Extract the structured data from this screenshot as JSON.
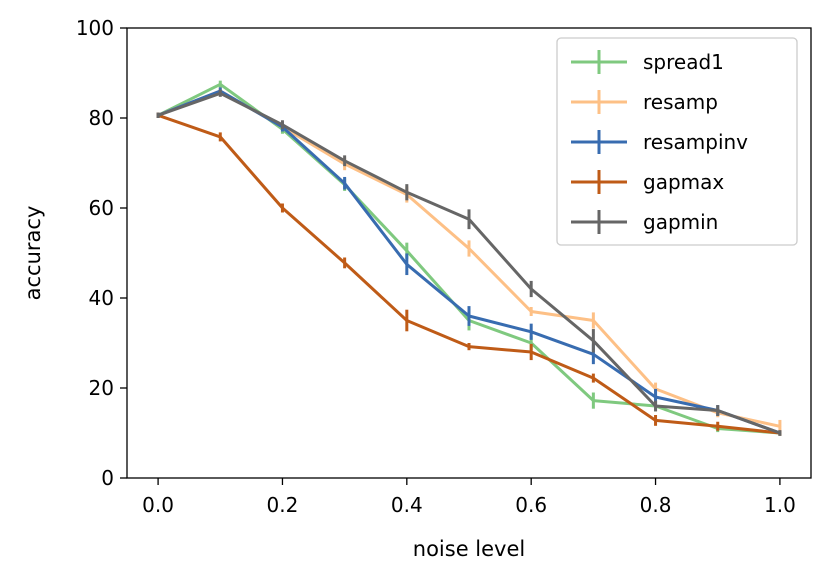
{
  "chart_data": {
    "type": "line",
    "title": "",
    "xlabel": "noise level",
    "ylabel": "accuracy",
    "xlim": [
      -0.05,
      1.05
    ],
    "ylim": [
      0,
      100
    ],
    "x": [
      0.0,
      0.1,
      0.2,
      0.3,
      0.4,
      0.5,
      0.6,
      0.7,
      0.8,
      0.9,
      1.0
    ],
    "xticks": [
      0.0,
      0.2,
      0.4,
      0.6,
      0.8,
      1.0
    ],
    "xtick_labels": [
      "0.0",
      "0.2",
      "0.4",
      "0.6",
      "0.8",
      "1.0"
    ],
    "yticks": [
      0,
      20,
      40,
      60,
      80,
      100
    ],
    "ytick_labels": [
      "0",
      "20",
      "40",
      "60",
      "80",
      "100"
    ],
    "grid": false,
    "legend_position": "top-right",
    "series": [
      {
        "name": "spread1",
        "color": "#7fc97f",
        "values": [
          80.6,
          87.5,
          77.5,
          65.2,
          50.5,
          35.0,
          30.0,
          17.2,
          16.0,
          11.0,
          10.0
        ],
        "errors": [
          0.6,
          0.8,
          1.0,
          1.4,
          1.8,
          2.2,
          1.6,
          1.8,
          1.2,
          0.8,
          0.6
        ]
      },
      {
        "name": "resamp",
        "color": "#fdc086",
        "values": [
          80.6,
          86.0,
          78.0,
          69.8,
          63.0,
          51.0,
          37.0,
          35.0,
          19.8,
          14.5,
          11.5
        ],
        "errors": [
          0.6,
          0.8,
          1.0,
          1.4,
          1.8,
          1.8,
          1.0,
          1.8,
          1.4,
          1.0,
          1.4
        ]
      },
      {
        "name": "resampinv",
        "color": "#386cb0",
        "values": [
          80.6,
          86.0,
          78.0,
          65.5,
          47.5,
          36.0,
          32.5,
          27.5,
          18.0,
          15.0,
          10.0
        ],
        "errors": [
          0.6,
          0.8,
          1.0,
          1.4,
          2.4,
          2.2,
          1.8,
          2.2,
          1.8,
          1.2,
          0.6
        ]
      },
      {
        "name": "gapmax",
        "color": "#bf5b17",
        "values": [
          80.6,
          75.8,
          60.0,
          47.8,
          35.0,
          29.2,
          28.0,
          22.2,
          12.8,
          11.5,
          10.0
        ],
        "errors": [
          0.6,
          1.0,
          1.0,
          1.2,
          2.4,
          0.8,
          1.8,
          1.0,
          1.2,
          1.0,
          0.6
        ]
      },
      {
        "name": "gapmin",
        "color": "#666666",
        "values": [
          80.6,
          85.5,
          78.5,
          70.5,
          63.5,
          57.5,
          42.0,
          30.5,
          16.0,
          15.0,
          10.0
        ],
        "errors": [
          0.6,
          0.8,
          1.0,
          1.2,
          1.8,
          2.2,
          1.8,
          2.6,
          1.2,
          1.2,
          0.6
        ]
      }
    ]
  }
}
